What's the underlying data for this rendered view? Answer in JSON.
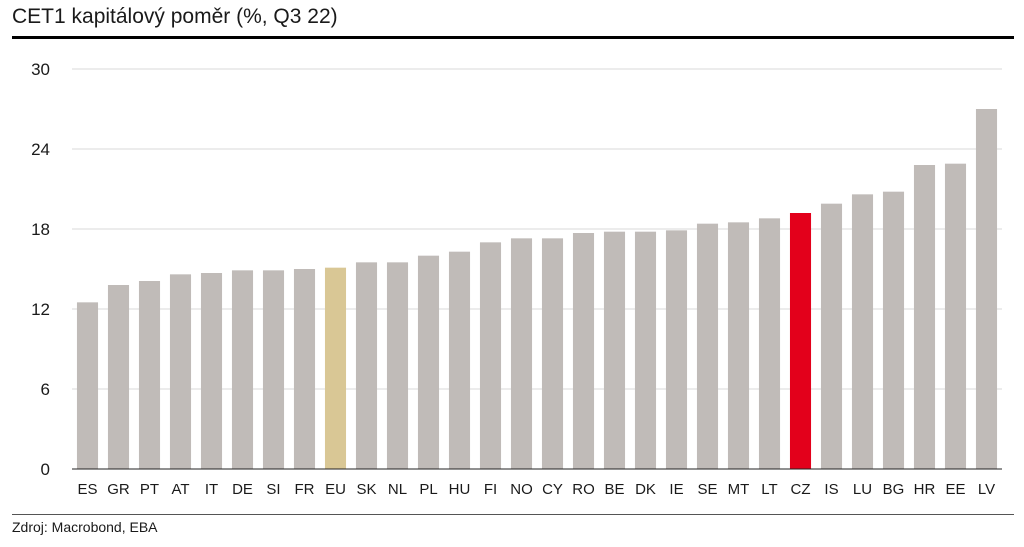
{
  "colors": {
    "default_bar": "#c0bbb8",
    "eu_bar": "#d9c795",
    "cz_bar": "#e3001b",
    "grid": "#d9d9d9",
    "axis": "#222222"
  },
  "source": "Zdroj: Macrobond, EBA",
  "chart_data": {
    "type": "bar",
    "title": "CET1 kapitálový poměr (%, Q3 22)",
    "xlabel": "",
    "ylabel": "",
    "ylim": [
      0,
      30
    ],
    "yticks": [
      0,
      6,
      12,
      18,
      24,
      30
    ],
    "grid": true,
    "categories": [
      "ES",
      "GR",
      "PT",
      "AT",
      "IT",
      "DE",
      "SI",
      "FR",
      "EU",
      "SK",
      "NL",
      "PL",
      "HU",
      "FI",
      "NO",
      "CY",
      "RO",
      "BE",
      "DK",
      "IE",
      "SE",
      "MT",
      "LT",
      "CZ",
      "IS",
      "LU",
      "BG",
      "HR",
      "EE",
      "LV"
    ],
    "values": [
      12.5,
      13.8,
      14.1,
      14.6,
      14.7,
      14.9,
      14.9,
      15.0,
      15.1,
      15.5,
      15.5,
      16.0,
      16.3,
      17.0,
      17.3,
      17.3,
      17.7,
      17.8,
      17.8,
      17.9,
      18.4,
      18.5,
      18.8,
      19.2,
      19.9,
      20.6,
      20.8,
      22.8,
      22.9,
      27.0
    ],
    "highlight": {
      "EU": "eu_bar",
      "CZ": "cz_bar"
    }
  }
}
